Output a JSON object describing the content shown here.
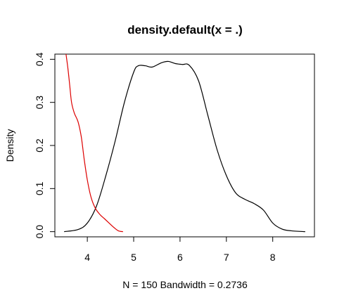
{
  "chart_data": {
    "type": "line",
    "title": "density.default(x = .)",
    "xlabel": "N = 150   Bandwidth = 0.2736",
    "ylabel": "Density",
    "xlim": [
      3.3,
      8.9
    ],
    "ylim": [
      -0.012,
      0.412
    ],
    "xticks": [
      "4",
      "5",
      "6",
      "7",
      "8"
    ],
    "yticks": [
      "0.0",
      "0.1",
      "0.2",
      "0.3",
      "0.4"
    ],
    "grid": false,
    "series": [
      {
        "color": "#000000",
        "x": [
          3.5,
          3.8,
          4.0,
          4.2,
          4.4,
          4.6,
          4.8,
          5.0,
          5.1,
          5.25,
          5.4,
          5.6,
          5.75,
          5.9,
          6.05,
          6.2,
          6.4,
          6.6,
          6.8,
          7.0,
          7.2,
          7.4,
          7.6,
          7.8,
          8.0,
          8.2,
          8.4,
          8.7
        ],
        "y": [
          0.0,
          0.005,
          0.02,
          0.06,
          0.13,
          0.21,
          0.3,
          0.37,
          0.385,
          0.385,
          0.382,
          0.392,
          0.395,
          0.39,
          0.388,
          0.386,
          0.35,
          0.27,
          0.19,
          0.13,
          0.09,
          0.075,
          0.065,
          0.05,
          0.02,
          0.006,
          0.002,
          0.0
        ]
      },
      {
        "color": "#dd0000",
        "x": [
          3.53,
          3.58,
          3.62,
          3.66,
          3.72,
          3.8,
          3.87,
          3.93,
          4.0,
          4.08,
          4.17,
          4.27,
          4.37,
          4.47,
          4.57,
          4.67,
          4.77
        ],
        "y": [
          0.42,
          0.38,
          0.34,
          0.3,
          0.275,
          0.255,
          0.22,
          0.17,
          0.12,
          0.08,
          0.055,
          0.04,
          0.03,
          0.02,
          0.01,
          0.002,
          0.0
        ]
      }
    ]
  }
}
